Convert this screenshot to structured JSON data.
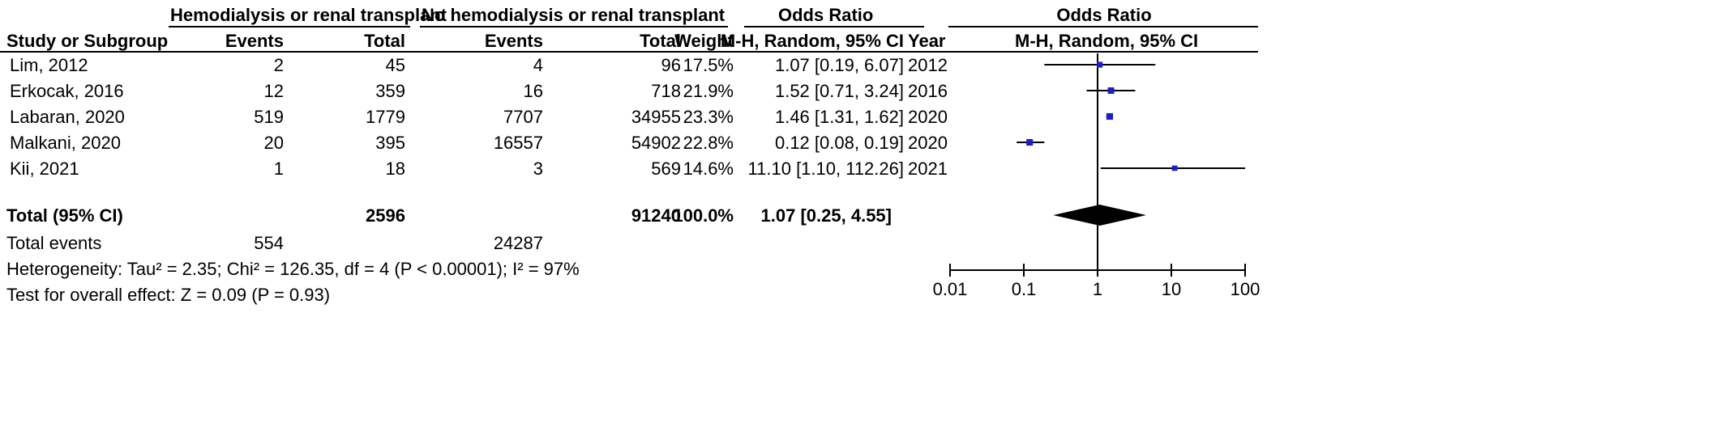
{
  "header": {
    "group1": "Hemodialysis or renal transplant",
    "group2": "No hemodialysis or renal transplant",
    "or_table": "Odds Ratio",
    "or_plot": "Odds Ratio",
    "study_col": "Study or Subgroup",
    "events1": "Events",
    "total1": "Total",
    "events2": "Events",
    "total2": "Total",
    "weight": "Weight",
    "method": "M-H, Random, 95% CI",
    "year": "Year",
    "method_plot": "M-H, Random, 95% CI"
  },
  "studies": [
    {
      "name": "Lim, 2012",
      "e1": "2",
      "t1": "45",
      "e2": "4",
      "t2": "96",
      "weight": "17.5%",
      "or_text": "1.07 [0.19, 6.07]",
      "year": "2012"
    },
    {
      "name": "Erkocak, 2016",
      "e1": "12",
      "t1": "359",
      "e2": "16",
      "t2": "718",
      "weight": "21.9%",
      "or_text": "1.52 [0.71, 3.24]",
      "year": "2016"
    },
    {
      "name": "Labaran, 2020",
      "e1": "519",
      "t1": "1779",
      "e2": "7707",
      "t2": "34955",
      "weight": "23.3%",
      "or_text": "1.46 [1.31, 1.62]",
      "year": "2020"
    },
    {
      "name": "Malkani, 2020",
      "e1": "20",
      "t1": "395",
      "e2": "16557",
      "t2": "54902",
      "weight": "22.8%",
      "or_text": "0.12 [0.08, 0.19]",
      "year": "2020"
    },
    {
      "name": "Kii, 2021",
      "e1": "1",
      "t1": "18",
      "e2": "3",
      "t2": "569",
      "weight": "14.6%",
      "or_text": "11.10 [1.10, 112.26]",
      "year": "2021"
    }
  ],
  "total": {
    "label": "Total (95% CI)",
    "t1": "2596",
    "t2": "91240",
    "weight": "100.0%",
    "or_text": "1.07 [0.25, 4.55]"
  },
  "total_events": {
    "label": "Total events",
    "e1": "554",
    "e2": "24287"
  },
  "heterogeneity": "Heterogeneity: Tau² = 2.35; Chi² = 126.35, df = 4 (P < 0.00001); I² = 97%",
  "overall_effect": "Test for overall effect: Z = 0.09 (P = 0.93)",
  "chart_data": {
    "type": "scatter",
    "x_scale": "log",
    "xlim": [
      0.01,
      100
    ],
    "x_ticks": [
      "0.01",
      "0.1",
      "1",
      "10",
      "100"
    ],
    "reference_line": 1,
    "points": [
      {
        "study": "Lim, 2012",
        "or": 1.07,
        "ci": [
          0.19,
          6.07
        ],
        "weight": 17.5
      },
      {
        "study": "Erkocak, 2016",
        "or": 1.52,
        "ci": [
          0.71,
          3.24
        ],
        "weight": 21.9
      },
      {
        "study": "Labaran, 2020",
        "or": 1.46,
        "ci": [
          1.31,
          1.62
        ],
        "weight": 23.3
      },
      {
        "study": "Malkani, 2020",
        "or": 0.12,
        "ci": [
          0.08,
          0.19
        ],
        "weight": 22.8
      },
      {
        "study": "Kii, 2021",
        "or": 11.1,
        "ci": [
          1.1,
          112.26
        ],
        "weight": 14.6
      }
    ],
    "pooled": {
      "or": 1.07,
      "ci": [
        0.25,
        4.55
      ]
    },
    "colors": {
      "marker": "#1f1fbf",
      "line": "#000000",
      "diamond": "#000000"
    }
  }
}
